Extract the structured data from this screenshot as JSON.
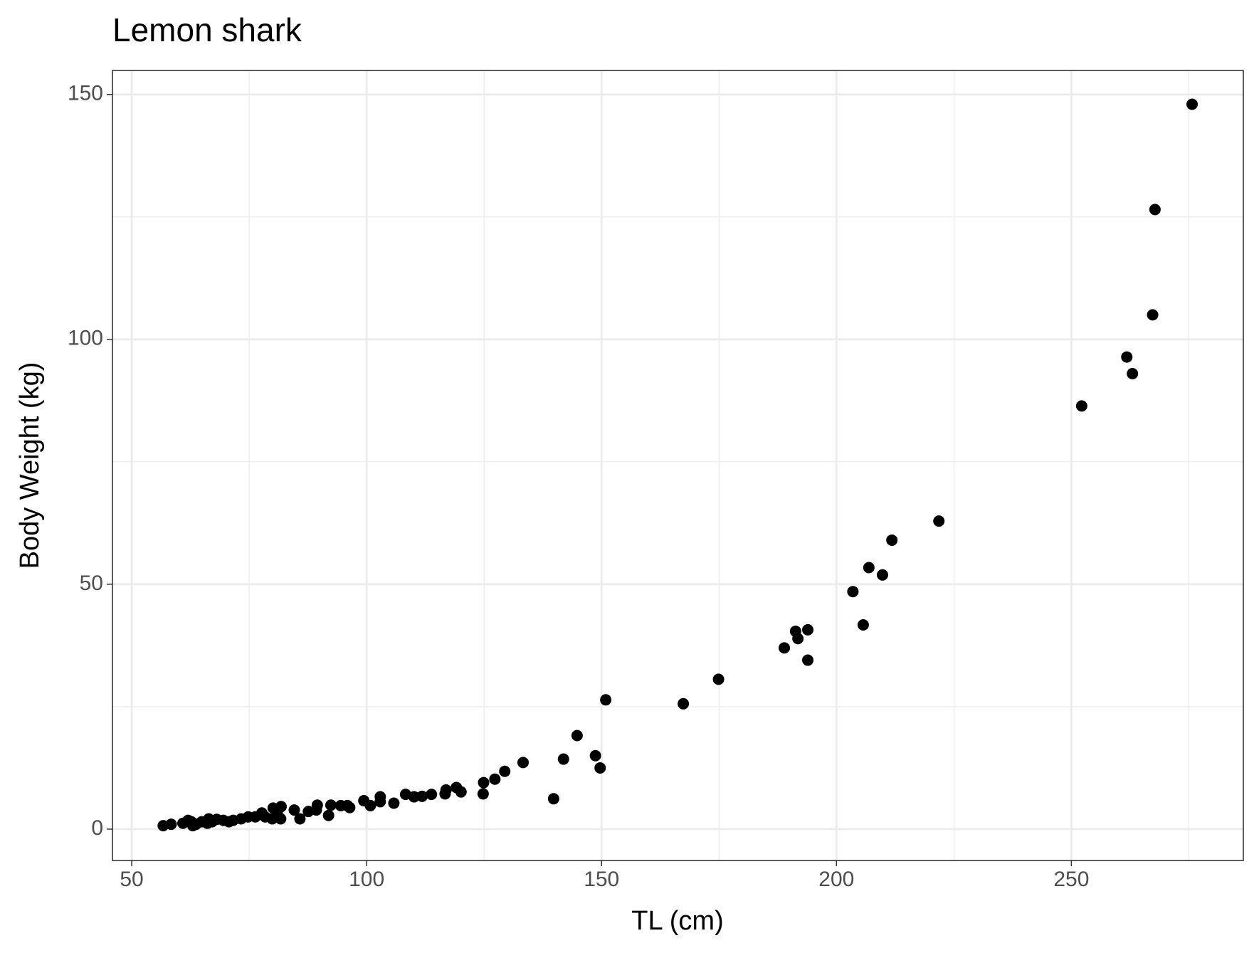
{
  "chart_data": {
    "type": "scatter",
    "title": "Lemon shark",
    "x_label": "TL (cm)",
    "y_label": "Body Weight (kg)",
    "x": [
      275.7,
      267.8,
      267.3,
      261.8,
      263.0,
      252.2,
      221.8,
      211.8,
      206.9,
      209.8,
      203.5,
      205.7,
      193.9,
      191.3,
      191.8,
      188.9,
      193.9,
      174.9,
      167.4,
      150.9,
      144.8,
      148.7,
      149.7,
      141.9,
      139.8,
      133.3,
      129.4,
      127.3,
      124.9,
      124.8,
      120.1,
      119.1,
      116.9,
      116.7,
      113.8,
      111.8,
      110.1,
      108.3,
      105.8,
      102.9,
      102.9,
      100.8,
      99.4,
      96.4,
      95.9,
      94.5,
      92.4,
      91.9,
      89.5,
      89.3,
      87.6,
      85.8,
      84.6,
      81.8,
      81.7,
      80.1,
      79.9,
      78.4,
      77.7,
      76.3,
      74.8,
      73.3,
      71.6,
      70.7,
      69.5,
      68.1,
      67.1,
      66.1,
      64.9,
      63.7,
      63.0,
      62.0,
      60.9,
      58.4,
      56.7,
      62.7,
      66.4,
      81.0
    ],
    "values": [
      148.0,
      126.5,
      105.0,
      96.4,
      93.0,
      86.4,
      62.9,
      59.0,
      53.4,
      51.9,
      48.5,
      41.7,
      40.7,
      40.4,
      38.9,
      37.0,
      34.5,
      30.6,
      25.6,
      26.4,
      19.1,
      15.0,
      12.5,
      14.3,
      6.2,
      13.6,
      11.8,
      10.2,
      9.5,
      7.2,
      7.6,
      8.5,
      8.0,
      7.2,
      7.1,
      6.7,
      6.6,
      7.1,
      5.3,
      6.6,
      5.6,
      4.8,
      5.8,
      4.4,
      4.8,
      4.8,
      4.9,
      2.8,
      4.9,
      3.9,
      3.6,
      2.1,
      3.9,
      4.6,
      2.1,
      4.3,
      2.1,
      2.5,
      3.3,
      2.5,
      2.5,
      2.1,
      1.8,
      1.5,
      1.8,
      2.0,
      1.5,
      1.2,
      1.5,
      1.0,
      0.7,
      1.8,
      1.2,
      1.0,
      0.7,
      1.5,
      2.1,
      3.1
    ],
    "color": "#000000",
    "xlim": [
      45.9,
      286.6
    ],
    "ylim": [
      -6.4,
      154.9
    ],
    "xticks": [
      50,
      100,
      150,
      200,
      250
    ],
    "yticks": [
      0,
      50,
      100,
      150
    ],
    "xminor": [
      75,
      125,
      175,
      225,
      275
    ],
    "yminor": [
      25,
      75,
      125
    ],
    "grid": true
  }
}
